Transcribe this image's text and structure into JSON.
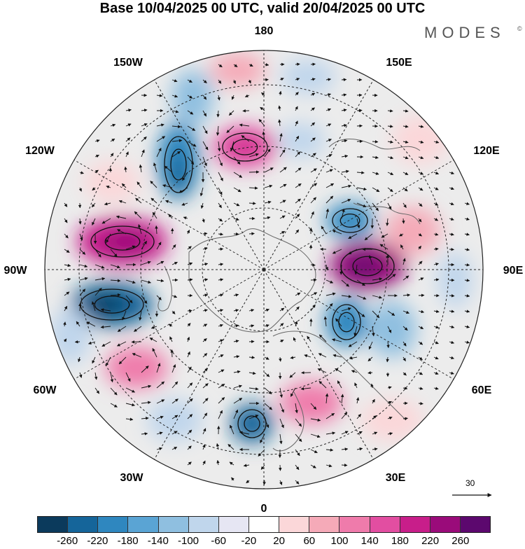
{
  "title": "Base 10/04/2025 00 UTC, valid 20/04/2025 00 UTC",
  "brand": "MODES",
  "brand_mark": "©",
  "longitude_labels": {
    "top": "180",
    "top_left": "150W",
    "top_right": "150E",
    "upper_left": "120W",
    "upper_right": "120E",
    "left": "90W",
    "right": "90E",
    "lower_left": "60W",
    "lower_right": "60E",
    "bottom_left": "30W",
    "bottom_right": "30E",
    "bottom": "0"
  },
  "reference_vector": {
    "label": "30"
  },
  "colorbar": {
    "colors": [
      "#0b3a5c",
      "#15659a",
      "#2f87bf",
      "#5aa4d4",
      "#8fbfe0",
      "#c0d6ec",
      "#e6e6f3",
      "#ffffff",
      "#fbd7d9",
      "#f5aab8",
      "#ef7bab",
      "#e24ea1",
      "#c81e8a",
      "#9a0b7a",
      "#5c086e"
    ],
    "tick_labels": [
      "-260",
      "-220",
      "-180",
      "-140",
      "-100",
      "-60",
      "-20",
      "20",
      "60",
      "100",
      "140",
      "180",
      "220",
      "260"
    ]
  },
  "colors": {
    "background": "#ffffff",
    "neutral_fill": "#ececec",
    "coast": "#666666",
    "grid": "#222222"
  }
}
